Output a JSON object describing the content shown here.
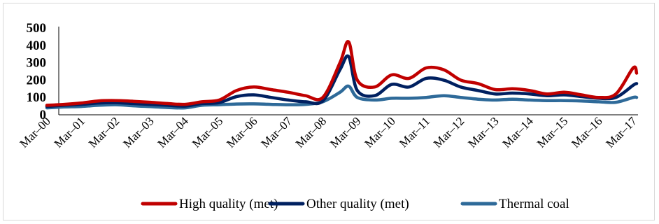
{
  "chart_data": {
    "type": "line",
    "title": "",
    "xlabel": "",
    "ylabel": "",
    "ylim": [
      0,
      500
    ],
    "yticks": [
      "0",
      "100",
      "200",
      "300",
      "400",
      "500"
    ],
    "grid": false,
    "legend_position": "bottom",
    "x_tick_labels": [
      "Mar–00",
      "Mar–01",
      "Mar–02",
      "Mar–03",
      "Mar–04",
      "Mar–05",
      "Mar–06",
      "Mar–07",
      "Mar–08",
      "Mar–09",
      "Mar–10",
      "Mar–11",
      "Mar–12",
      "Mar–13",
      "Mar–14",
      "Mar–15",
      "Mar–16",
      "Mar–17"
    ],
    "x": [
      "Mar–00",
      "Sep–00",
      "Mar–01",
      "Sep–01",
      "Mar–02",
      "Sep–02",
      "Mar–03",
      "Sep–03",
      "Mar–04",
      "Sep–04",
      "Mar–05",
      "Sep–05",
      "Mar–06",
      "Sep–06",
      "Mar–07",
      "Sep–07",
      "Mar–08",
      "Sep–08",
      "Dec–08",
      "Mar–09",
      "Sep–09",
      "Mar–10",
      "Sep–10",
      "Mar–11",
      "Sep–11",
      "Mar–12",
      "Sep–12",
      "Mar–13",
      "Sep–13",
      "Mar–14",
      "Sep–14",
      "Mar–15",
      "Sep–15",
      "Mar–16",
      "Sep–16",
      "Mar–17",
      "Sep–17"
    ],
    "series": [
      {
        "name": "High quality (met)",
        "color": "#c00000",
        "values": [
          55,
          60,
          68,
          80,
          82,
          78,
          72,
          65,
          60,
          75,
          85,
          140,
          160,
          145,
          130,
          110,
          100,
          300,
          420,
          200,
          160,
          230,
          210,
          270,
          260,
          200,
          180,
          145,
          150,
          140,
          120,
          130,
          115,
          100,
          120,
          270,
          240
        ]
      },
      {
        "name": "Other quality (met)",
        "color": "#002060",
        "values": [
          48,
          55,
          60,
          68,
          70,
          65,
          60,
          55,
          50,
          65,
          70,
          105,
          115,
          100,
          85,
          75,
          80,
          260,
          335,
          140,
          110,
          175,
          160,
          210,
          200,
          160,
          140,
          120,
          125,
          120,
          110,
          115,
          105,
          95,
          100,
          170,
          180
        ]
      },
      {
        "name": "Thermal coal",
        "color": "#2e6a99",
        "values": [
          40,
          45,
          48,
          55,
          58,
          52,
          47,
          42,
          40,
          55,
          58,
          62,
          63,
          60,
          58,
          60,
          75,
          130,
          165,
          100,
          85,
          95,
          95,
          100,
          110,
          100,
          90,
          85,
          90,
          85,
          82,
          82,
          80,
          75,
          72,
          100,
          100
        ]
      }
    ]
  }
}
